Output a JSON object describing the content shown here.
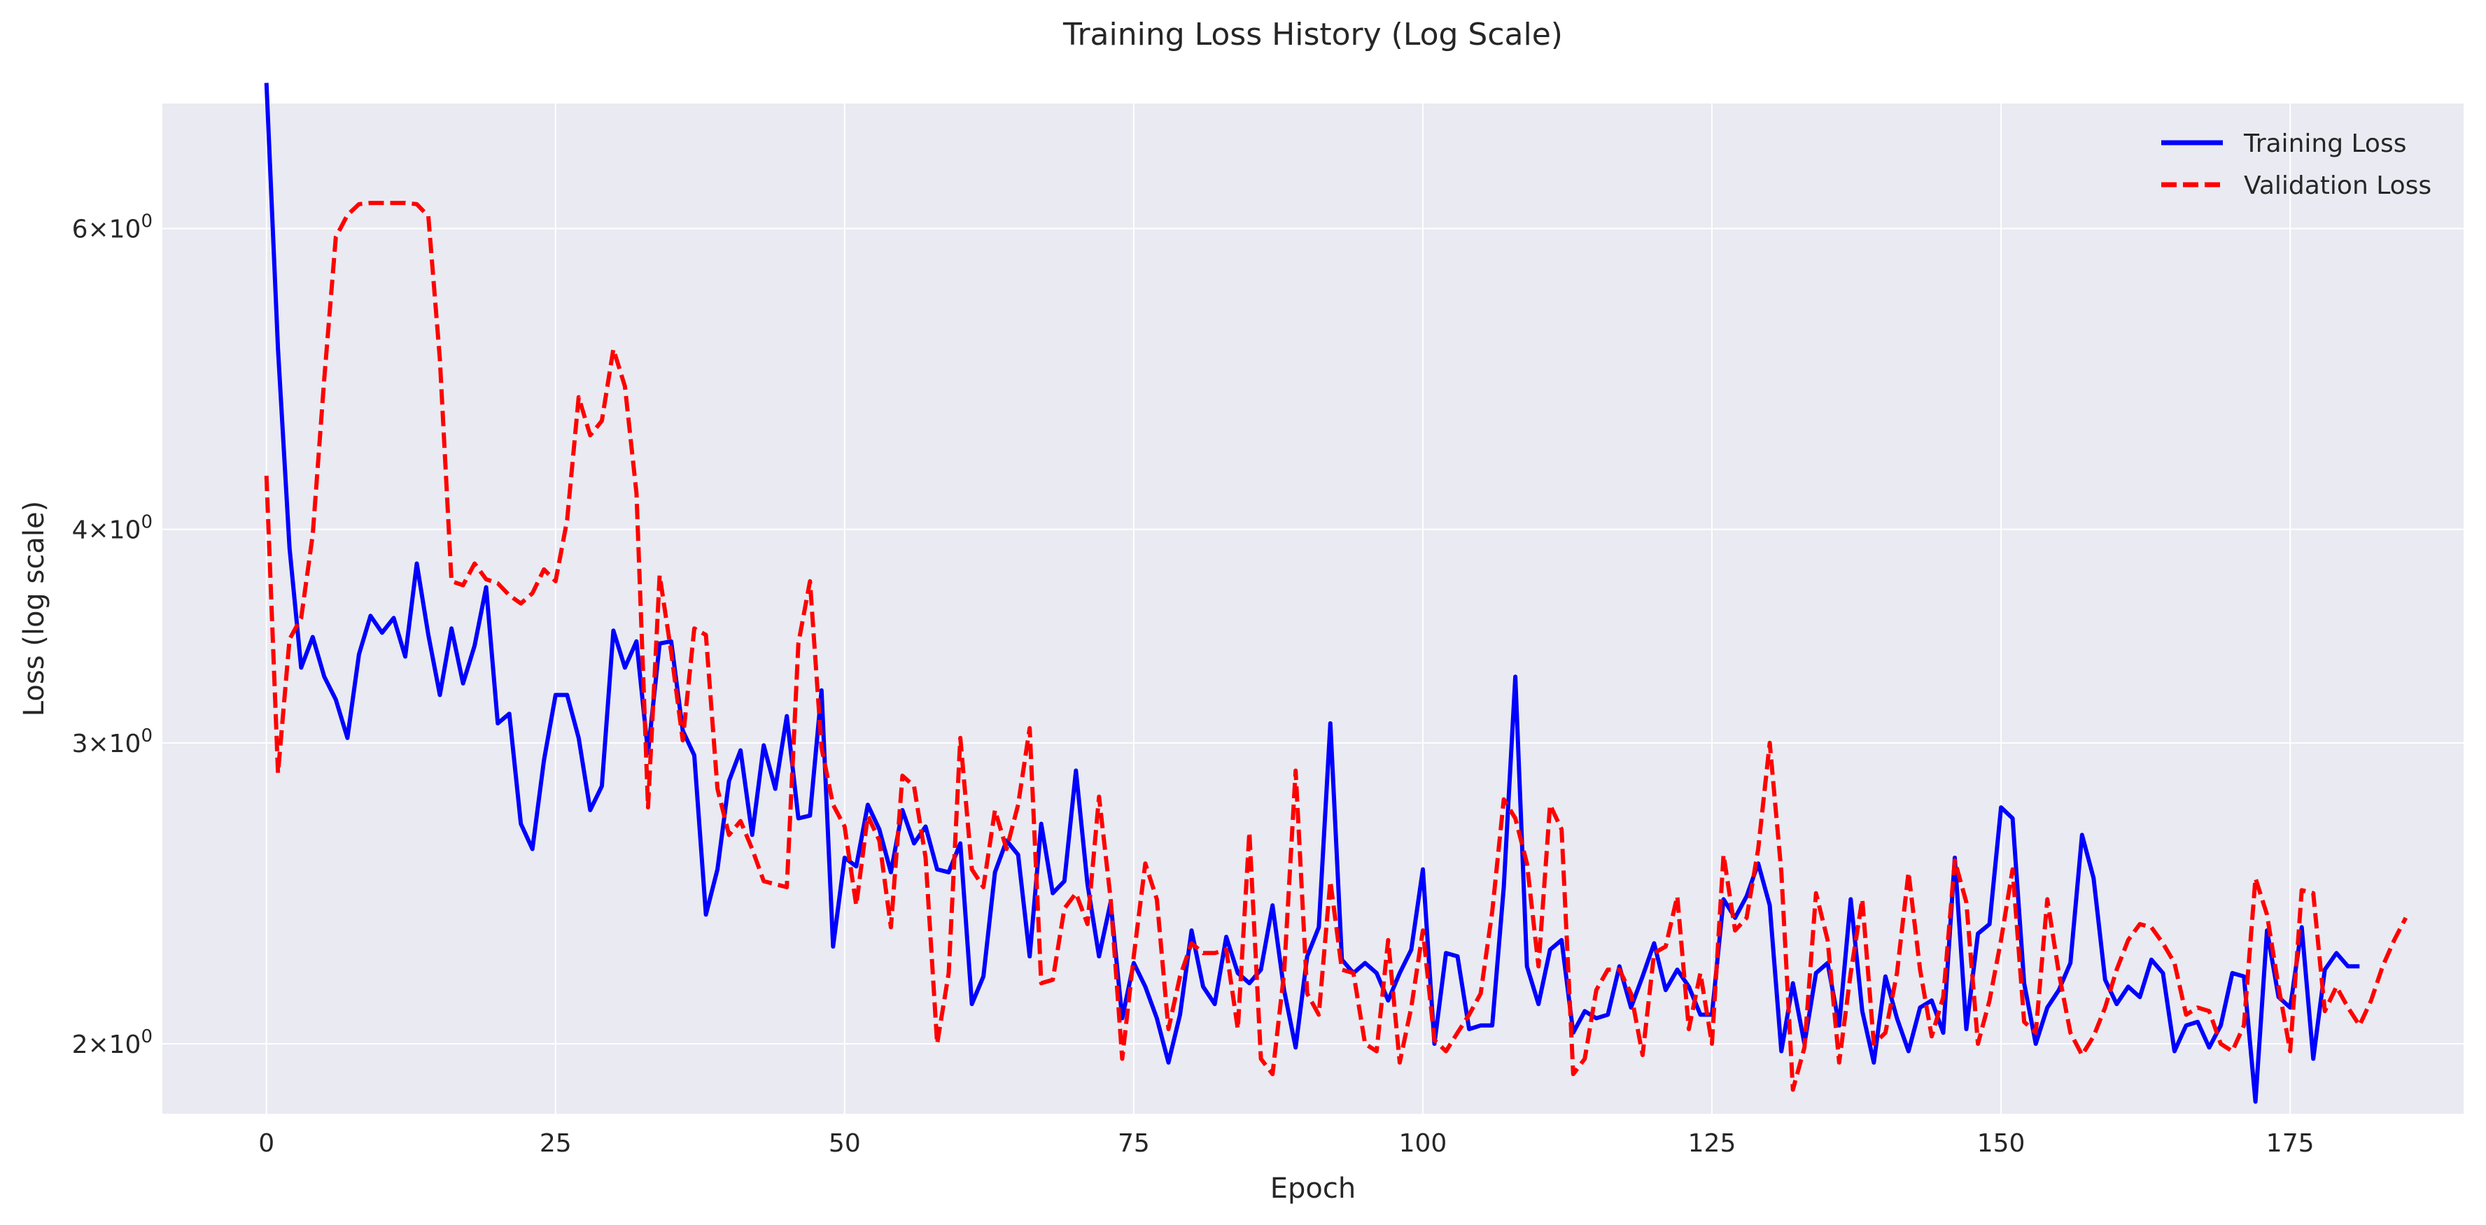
{
  "chart_data": {
    "type": "line",
    "title": "Training Loss History (Log Scale)",
    "xlabel": "Epoch",
    "ylabel": "Loss (log scale)",
    "xlim": [
      -9,
      190
    ],
    "ylim": [
      1.82,
      7.1
    ],
    "y_scale": "log",
    "x_ticks": [
      0,
      25,
      50,
      75,
      100,
      125,
      150,
      175
    ],
    "y_ticks": [
      {
        "value": 2,
        "mant": "2",
        "exp": "0"
      },
      {
        "value": 3,
        "mant": "3",
        "exp": "0"
      },
      {
        "value": 4,
        "mant": "4",
        "exp": "0"
      },
      {
        "value": 6,
        "mant": "6",
        "exp": "0"
      }
    ],
    "tick_sep": "×10",
    "grid": true,
    "legend_position": "top-right",
    "series": [
      {
        "name": "Training Loss",
        "color": "#0000ff",
        "dash": "solid",
        "values": [
          7.3,
          5.1,
          3.9,
          3.32,
          3.46,
          3.28,
          3.18,
          3.02,
          3.38,
          3.56,
          3.48,
          3.55,
          3.37,
          3.82,
          3.47,
          3.2,
          3.5,
          3.25,
          3.42,
          3.7,
          3.08,
          3.12,
          2.69,
          2.6,
          2.93,
          3.2,
          3.2,
          3.02,
          2.74,
          2.83,
          3.49,
          3.32,
          3.44,
          2.96,
          3.43,
          3.44,
          3.05,
          2.95,
          2.38,
          2.53,
          2.85,
          2.97,
          2.65,
          2.99,
          2.82,
          3.11,
          2.71,
          2.72,
          3.22,
          2.28,
          2.57,
          2.54,
          2.76,
          2.67,
          2.52,
          2.74,
          2.62,
          2.68,
          2.53,
          2.52,
          2.62,
          2.11,
          2.19,
          2.52,
          2.63,
          2.58,
          2.25,
          2.69,
          2.45,
          2.49,
          2.89,
          2.48,
          2.25,
          2.42,
          2.07,
          2.23,
          2.16,
          2.07,
          1.95,
          2.08,
          2.33,
          2.16,
          2.11,
          2.31,
          2.2,
          2.17,
          2.21,
          2.41,
          2.15,
          1.99,
          2.25,
          2.34,
          3.08,
          2.24,
          2.2,
          2.23,
          2.2,
          2.12,
          2.2,
          2.27,
          2.53,
          2.0,
          2.26,
          2.25,
          2.04,
          2.05,
          2.05,
          2.47,
          3.28,
          2.22,
          2.11,
          2.27,
          2.3,
          2.03,
          2.09,
          2.07,
          2.08,
          2.22,
          2.1,
          2.19,
          2.29,
          2.15,
          2.21,
          2.16,
          2.08,
          2.08,
          2.43,
          2.37,
          2.44,
          2.55,
          2.41,
          1.98,
          2.17,
          2.0,
          2.2,
          2.23,
          2.05,
          2.43,
          2.09,
          1.95,
          2.19,
          2.07,
          1.98,
          2.1,
          2.12,
          2.03,
          2.57,
          2.04,
          2.32,
          2.35,
          2.75,
          2.71,
          2.17,
          2.0,
          2.1,
          2.15,
          2.23,
          2.65,
          2.5,
          2.18,
          2.11,
          2.16,
          2.13,
          2.24,
          2.2,
          1.98,
          2.05,
          2.06,
          1.99,
          2.05,
          2.2,
          2.19,
          1.85,
          2.33,
          2.13,
          2.1,
          2.34,
          1.96,
          2.21,
          2.26,
          2.22,
          2.22
        ]
      },
      {
        "name": "Validation Loss",
        "color": "#ff0000",
        "dash": "dashed",
        "values": [
          4.3,
          2.88,
          3.45,
          3.55,
          3.97,
          4.9,
          5.93,
          6.11,
          6.2,
          6.21,
          6.21,
          6.21,
          6.21,
          6.2,
          6.1,
          5.03,
          3.73,
          3.71,
          3.82,
          3.74,
          3.72,
          3.66,
          3.62,
          3.67,
          3.79,
          3.73,
          4.05,
          4.78,
          4.54,
          4.63,
          5.1,
          4.85,
          4.2,
          2.75,
          3.76,
          3.39,
          3.01,
          3.5,
          3.47,
          2.82,
          2.65,
          2.7,
          2.6,
          2.49,
          2.48,
          2.47,
          3.43,
          3.73,
          2.98,
          2.76,
          2.68,
          2.41,
          2.72,
          2.63,
          2.34,
          2.87,
          2.83,
          2.57,
          2.0,
          2.2,
          3.02,
          2.53,
          2.47,
          2.74,
          2.6,
          2.76,
          3.06,
          2.17,
          2.18,
          2.4,
          2.45,
          2.35,
          2.79,
          2.43,
          1.96,
          2.25,
          2.55,
          2.43,
          2.04,
          2.19,
          2.29,
          2.26,
          2.26,
          2.27,
          2.04,
          2.66,
          1.96,
          1.92,
          2.2,
          2.89,
          2.14,
          2.08,
          2.49,
          2.21,
          2.2,
          2.0,
          1.98,
          2.3,
          1.95,
          2.1,
          2.33,
          2.01,
          1.98,
          2.03,
          2.08,
          2.14,
          2.39,
          2.78,
          2.71,
          2.55,
          2.22,
          2.76,
          2.67,
          1.92,
          1.96,
          2.15,
          2.21,
          2.21,
          2.14,
          1.97,
          2.26,
          2.28,
          2.44,
          2.04,
          2.2,
          2.0,
          2.58,
          2.33,
          2.37,
          2.6,
          3.0,
          2.52,
          1.88,
          1.99,
          2.45,
          2.3,
          1.95,
          2.2,
          2.43,
          2.0,
          2.03,
          2.2,
          2.52,
          2.21,
          2.02,
          2.13,
          2.56,
          2.42,
          2.0,
          2.12,
          2.3,
          2.53,
          2.06,
          2.03,
          2.43,
          2.2,
          2.03,
          1.97,
          2.02,
          2.1,
          2.21,
          2.3,
          2.35,
          2.34,
          2.29,
          2.23,
          2.08,
          2.1,
          2.09,
          2.0,
          1.98,
          2.05,
          2.5,
          2.38,
          2.16,
          1.98,
          2.46,
          2.45,
          2.09,
          2.16,
          2.1,
          2.05,
          2.12,
          2.22,
          2.3,
          2.37
        ]
      }
    ]
  }
}
